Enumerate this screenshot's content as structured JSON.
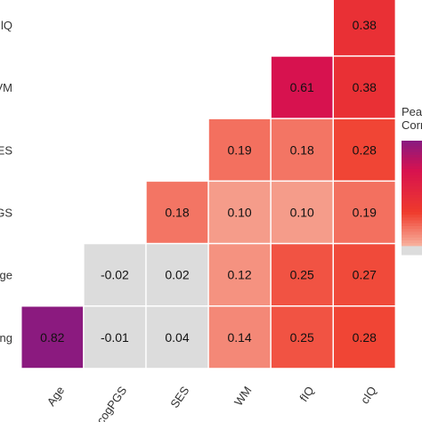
{
  "chart_data": {
    "type": "heatmap",
    "title": "",
    "legend_title_lines": [
      "Pea",
      "Corr"
    ],
    "legend_placement": "right",
    "rows": [
      "lQ",
      "VM",
      "ES",
      "GS",
      "ge",
      "ng"
    ],
    "columns": [
      "Age",
      "cogPGS",
      "SES",
      "WM",
      "fIQ",
      "cIQ"
    ],
    "cells": [
      {
        "row": "lQ",
        "col": "cIQ",
        "value": 0.38
      },
      {
        "row": "VM",
        "col": "fIQ",
        "value": 0.61
      },
      {
        "row": "VM",
        "col": "cIQ",
        "value": 0.38
      },
      {
        "row": "ES",
        "col": "WM",
        "value": 0.19
      },
      {
        "row": "ES",
        "col": "fIQ",
        "value": 0.18
      },
      {
        "row": "ES",
        "col": "cIQ",
        "value": 0.28
      },
      {
        "row": "GS",
        "col": "SES",
        "value": 0.18
      },
      {
        "row": "GS",
        "col": "WM",
        "value": 0.1
      },
      {
        "row": "GS",
        "col": "fIQ",
        "value": 0.1
      },
      {
        "row": "GS",
        "col": "cIQ",
        "value": 0.19
      },
      {
        "row": "ge",
        "col": "cogPGS",
        "value": -0.02
      },
      {
        "row": "ge",
        "col": "SES",
        "value": 0.02
      },
      {
        "row": "ge",
        "col": "WM",
        "value": 0.12
      },
      {
        "row": "ge",
        "col": "fIQ",
        "value": 0.25
      },
      {
        "row": "ge",
        "col": "cIQ",
        "value": 0.27
      },
      {
        "row": "ng",
        "col": "Age",
        "value": 0.82
      },
      {
        "row": "ng",
        "col": "cogPGS",
        "value": -0.01
      },
      {
        "row": "ng",
        "col": "SES",
        "value": 0.04
      },
      {
        "row": "ng",
        "col": "WM",
        "value": 0.14
      },
      {
        "row": "ng",
        "col": "fIQ",
        "value": 0.25
      },
      {
        "row": "ng",
        "col": "cIQ",
        "value": 0.28
      }
    ],
    "colors": {
      "negative_neutral": "#dcdcdc",
      "low": "#f7b4a1",
      "mid": "#ef3b2c",
      "high": "#d7124f",
      "max": "#8b1a7f"
    }
  }
}
